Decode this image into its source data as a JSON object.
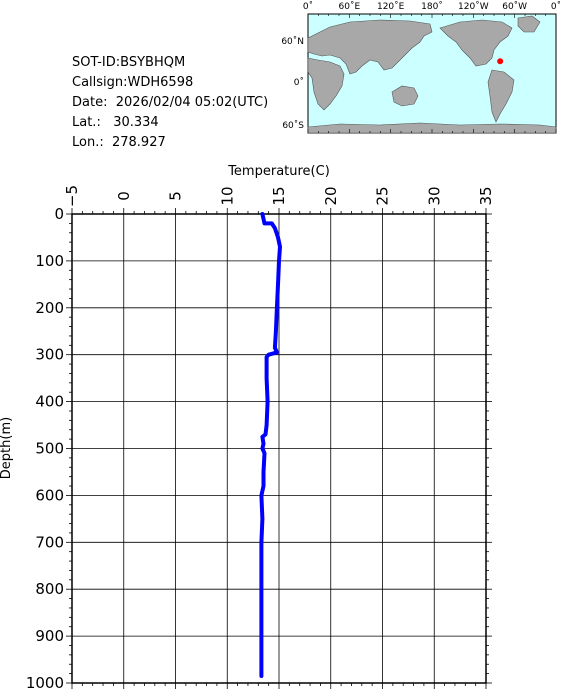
{
  "info": {
    "sot_id": "SOT-ID:BSYBHQM",
    "callsign": "Callsign:WDH6598",
    "date": "Date:  2026/02/04 05:02(UTC)",
    "lat": "Lat.:   30.334",
    "lon": "Lon.:  278.927"
  },
  "map": {
    "top_labels": [
      "0˚",
      "60˚E",
      "120˚E",
      "180˚",
      "120˚W",
      "60˚W",
      "0˚"
    ],
    "left_labels": [
      "60˚N",
      "0˚",
      "60˚S"
    ],
    "ocean_color": "#ccffff",
    "land_color": "#a8a8a8",
    "marker_color": "#ff0000"
  },
  "chart_data": {
    "type": "line",
    "xlabel": "Temperature(C)",
    "ylabel": "Depth(m)",
    "xlim": [
      -5,
      35
    ],
    "ylim": [
      1000,
      0
    ],
    "x_ticks": [
      -5,
      0,
      5,
      10,
      15,
      20,
      25,
      30,
      35
    ],
    "y_ticks": [
      0,
      100,
      200,
      300,
      400,
      500,
      600,
      700,
      800,
      900,
      1000
    ],
    "grid": true,
    "series": [
      {
        "color": "#0000ff",
        "points": [
          [
            13.4,
            0
          ],
          [
            13.6,
            20
          ],
          [
            14.3,
            20
          ],
          [
            14.6,
            30
          ],
          [
            14.9,
            50
          ],
          [
            15.1,
            70
          ],
          [
            15.0,
            100
          ],
          [
            14.9,
            150
          ],
          [
            14.8,
            200
          ],
          [
            14.7,
            250
          ],
          [
            14.6,
            285
          ],
          [
            14.8,
            295
          ],
          [
            14.0,
            300
          ],
          [
            13.8,
            305
          ],
          [
            13.8,
            350
          ],
          [
            13.9,
            400
          ],
          [
            13.8,
            450
          ],
          [
            13.7,
            470
          ],
          [
            13.4,
            475
          ],
          [
            13.5,
            490
          ],
          [
            13.4,
            500
          ],
          [
            13.6,
            510
          ],
          [
            13.5,
            550
          ],
          [
            13.5,
            580
          ],
          [
            13.3,
            600
          ],
          [
            13.4,
            650
          ],
          [
            13.3,
            700
          ],
          [
            13.3,
            800
          ],
          [
            13.3,
            900
          ],
          [
            13.3,
            985
          ]
        ]
      }
    ],
    "position_marker": {
      "lat": 30.334,
      "lon": 278.927
    }
  }
}
